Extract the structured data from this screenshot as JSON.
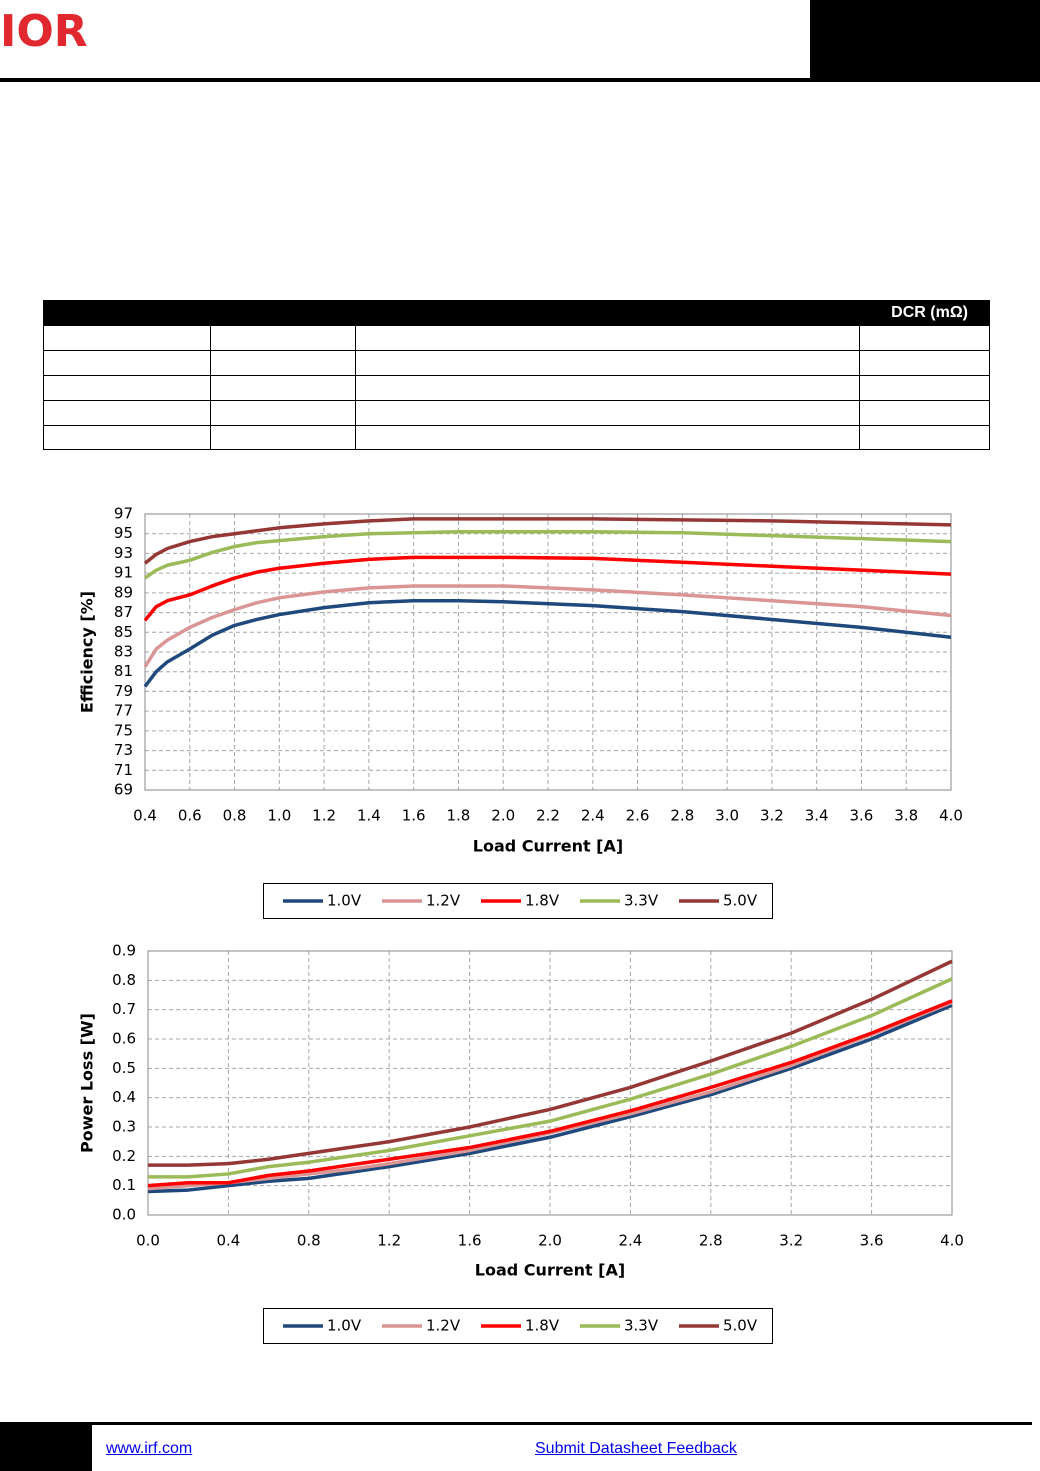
{
  "header": {
    "logo": "IOR"
  },
  "table": {
    "header": "DCR (mΩ)"
  },
  "chart_data": [
    {
      "type": "line",
      "ylabel": "Efficiency [%]",
      "xlabel": "Load Current [A]",
      "xlim": [
        0.4,
        4.0
      ],
      "ylim": [
        69,
        97
      ],
      "grid": true,
      "xticks": [
        0.4,
        0.6,
        0.8,
        {
          "value": 1,
          "label": "1.0"
        },
        1.2,
        1.4,
        1.6,
        1.8,
        {
          "value": 2,
          "label": "2.0"
        },
        2.2,
        2.4,
        2.6,
        2.8,
        {
          "value": 3,
          "label": "3.0"
        },
        3.2,
        3.4,
        3.6,
        3.8,
        {
          "value": 4,
          "label": "4.0"
        }
      ],
      "yticks": [
        69,
        71,
        73,
        75,
        77,
        79,
        81,
        83,
        85,
        87,
        89,
        91,
        93,
        95,
        97
      ],
      "x": [
        0.4,
        0.45,
        0.5,
        0.6,
        0.7,
        0.8,
        0.9,
        1.0,
        1.2,
        1.4,
        1.6,
        1.8,
        2.0,
        2.4,
        2.8,
        3.2,
        3.6,
        4.0
      ],
      "series": [
        {
          "name": "1.0V",
          "color": "#1f497d",
          "values": [
            79.5,
            81,
            82,
            83.3,
            84.7,
            85.7,
            86.3,
            86.8,
            87.5,
            88,
            88.2,
            88.2,
            88.1,
            87.7,
            87.1,
            86.3,
            85.5,
            84.5
          ]
        },
        {
          "name": "1.2V",
          "color": "#da9694",
          "values": [
            81.5,
            83.3,
            84.2,
            85.5,
            86.5,
            87.3,
            88,
            88.5,
            89.1,
            89.5,
            89.7,
            89.7,
            89.7,
            89.3,
            88.8,
            88.2,
            87.6,
            86.7
          ]
        },
        {
          "name": "1.8V",
          "color": "#ff0000",
          "values": [
            86.2,
            87.6,
            88.2,
            88.8,
            89.7,
            90.5,
            91.1,
            91.5,
            92,
            92.4,
            92.6,
            92.6,
            92.6,
            92.5,
            92.1,
            91.7,
            91.3,
            90.9
          ]
        },
        {
          "name": "3.3V",
          "color": "#9bbb59",
          "values": [
            90.5,
            91.3,
            91.8,
            92.3,
            93.1,
            93.7,
            94.1,
            94.3,
            94.7,
            95,
            95.1,
            95.2,
            95.2,
            95.2,
            95.1,
            94.8,
            94.5,
            94.2
          ]
        },
        {
          "name": "5.0V",
          "color": "#953735",
          "values": [
            92,
            92.9,
            93.5,
            94.2,
            94.7,
            95,
            95.3,
            95.6,
            96,
            96.3,
            96.5,
            96.5,
            96.5,
            96.5,
            96.4,
            96.3,
            96.1,
            95.9
          ]
        }
      ]
    },
    {
      "type": "line",
      "ylabel": "Power Loss [W]",
      "xlabel": "Load Current [A]",
      "xlim": [
        0,
        4.0
      ],
      "ylim": [
        0,
        0.9
      ],
      "grid": true,
      "xticks": [
        {
          "value": 0,
          "label": "0.0"
        },
        0.4,
        0.8,
        1.2,
        1.6,
        {
          "value": 2,
          "label": "2.0"
        },
        2.4,
        2.8,
        3.2,
        3.6,
        {
          "value": 4,
          "label": "4.0"
        }
      ],
      "yticks": [
        {
          "value": 0,
          "label": "0.0"
        },
        0.1,
        0.2,
        0.3,
        0.4,
        0.5,
        0.6,
        0.7,
        0.8,
        0.9
      ],
      "x": [
        0,
        0.2,
        0.4,
        0.6,
        0.8,
        1.0,
        1.2,
        1.6,
        2.0,
        2.4,
        2.8,
        3.2,
        3.6,
        4.0
      ],
      "series": [
        {
          "name": "1.0V",
          "color": "#1f497d",
          "values": [
            0.08,
            0.085,
            0.1,
            0.115,
            0.125,
            0.145,
            0.165,
            0.21,
            0.265,
            0.335,
            0.41,
            0.5,
            0.6,
            0.715
          ]
        },
        {
          "name": "1.2V",
          "color": "#da9694",
          "values": [
            0.09,
            0.1,
            0.11,
            0.125,
            0.14,
            0.155,
            0.175,
            0.22,
            0.28,
            0.345,
            0.42,
            0.51,
            0.615,
            0.725
          ]
        },
        {
          "name": "1.8V",
          "color": "#ff0000",
          "values": [
            0.1,
            0.11,
            0.11,
            0.135,
            0.15,
            0.17,
            0.19,
            0.23,
            0.285,
            0.355,
            0.435,
            0.52,
            0.62,
            0.73
          ]
        },
        {
          "name": "3.3V",
          "color": "#9bbb59",
          "values": [
            0.13,
            0.13,
            0.14,
            0.165,
            0.18,
            0.2,
            0.22,
            0.27,
            0.32,
            0.395,
            0.48,
            0.575,
            0.68,
            0.805
          ]
        },
        {
          "name": "5.0V",
          "color": "#953735",
          "values": [
            0.17,
            0.17,
            0.175,
            0.19,
            0.21,
            0.23,
            0.25,
            0.3,
            0.36,
            0.435,
            0.525,
            0.62,
            0.735,
            0.865
          ]
        }
      ]
    }
  ],
  "footer": {
    "website": "www.irf.com",
    "feedback": "Submit Datasheet Feedback"
  }
}
